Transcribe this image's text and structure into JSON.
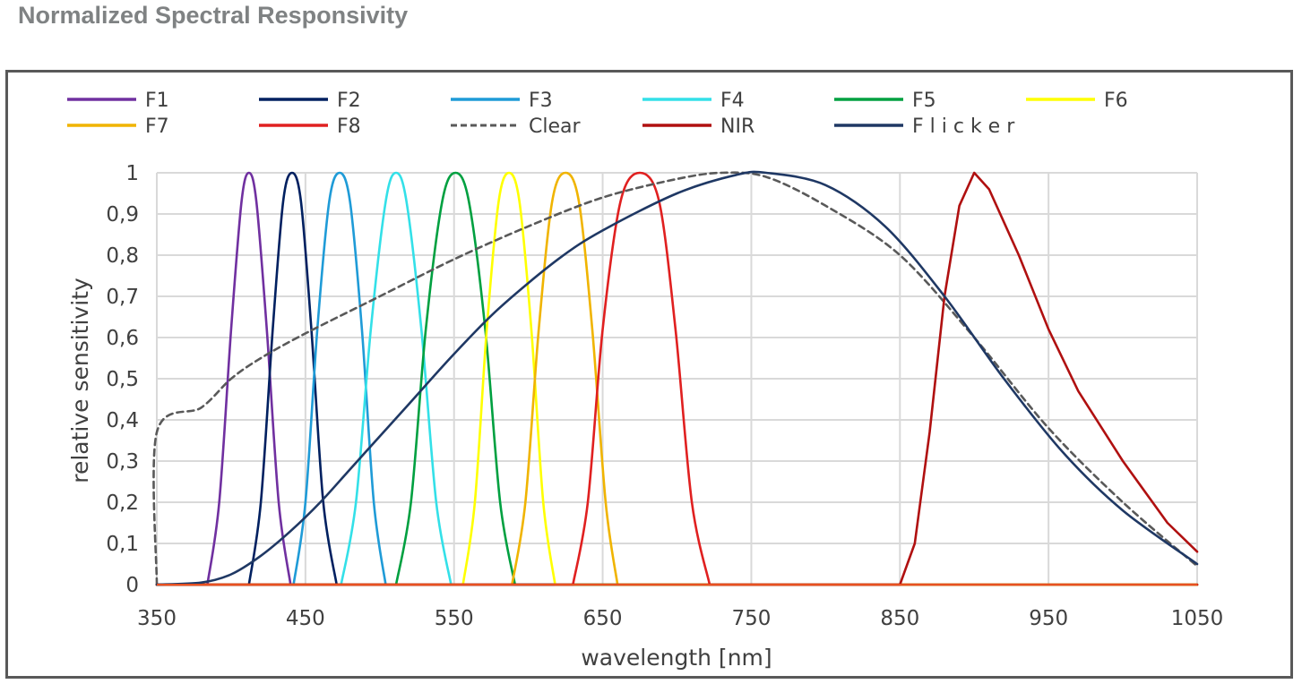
{
  "page": {
    "title": "Normalized Spectral Responsivity"
  },
  "chart_data": {
    "type": "line",
    "xlabel": "wavelength [nm]",
    "ylabel": "relative sensitivity",
    "xlim": [
      350,
      1050
    ],
    "ylim": [
      0,
      1
    ],
    "x_ticks": [
      "350",
      "450",
      "550",
      "650",
      "750",
      "850",
      "950",
      "1050"
    ],
    "x_tick_values": [
      350,
      450,
      550,
      650,
      750,
      850,
      950,
      1050
    ],
    "y_ticks": [
      "0",
      "0,1",
      "0,2",
      "0,3",
      "0,4",
      "0,5",
      "0,6",
      "0,7",
      "0,8",
      "0,9",
      "1"
    ],
    "y_tick_values": [
      0,
      0.1,
      0.2,
      0.3,
      0.4,
      0.5,
      0.6,
      0.7,
      0.8,
      0.9,
      1
    ],
    "grid": true,
    "legend_position": "top",
    "series": [
      {
        "name": "F1",
        "color": "#7030a0",
        "style": "solid",
        "x": [
          350,
          384,
          392,
          400,
          407,
          412,
          417,
          424,
          432,
          440,
          1050
        ],
        "y": [
          0,
          0,
          0.2,
          0.62,
          0.93,
          1,
          0.93,
          0.62,
          0.2,
          0,
          0
        ]
      },
      {
        "name": "F2",
        "color": "#002060",
        "style": "solid",
        "x": [
          350,
          412,
          420,
          428,
          435,
          441,
          447,
          454,
          462,
          471,
          1050
        ],
        "y": [
          0,
          0,
          0.2,
          0.62,
          0.93,
          1,
          0.93,
          0.62,
          0.2,
          0,
          0
        ]
      },
      {
        "name": "F3",
        "color": "#1f9bd7",
        "style": "solid",
        "x": [
          350,
          442,
          450,
          458,
          466,
          473,
          480,
          488,
          496,
          504,
          1050
        ],
        "y": [
          0,
          0,
          0.2,
          0.62,
          0.93,
          1,
          0.93,
          0.62,
          0.2,
          0,
          0
        ]
      },
      {
        "name": "F4",
        "color": "#33e0e8",
        "style": "solid",
        "x": [
          350,
          474,
          484,
          494,
          504,
          511,
          518,
          528,
          538,
          548,
          1050
        ],
        "y": [
          0,
          0,
          0.2,
          0.62,
          0.93,
          1,
          0.93,
          0.62,
          0.2,
          0,
          0
        ]
      },
      {
        "name": "F5",
        "color": "#00a040",
        "style": "solid",
        "x": [
          350,
          511,
          521,
          531,
          542,
          551,
          560,
          571,
          581,
          591,
          1050
        ],
        "y": [
          0,
          0,
          0.2,
          0.62,
          0.93,
          1,
          0.93,
          0.62,
          0.2,
          0,
          0
        ]
      },
      {
        "name": "F6",
        "color": "#ffff00",
        "style": "solid",
        "x": [
          350,
          556,
          564,
          572,
          580,
          587,
          594,
          602,
          610,
          618,
          1050
        ],
        "y": [
          0,
          0,
          0.2,
          0.62,
          0.93,
          1,
          0.93,
          0.62,
          0.2,
          0,
          0
        ]
      },
      {
        "name": "F7",
        "color": "#f0b400",
        "style": "solid",
        "x": [
          350,
          589,
          598,
          607,
          616,
          625,
          634,
          643,
          652,
          660,
          1050
        ],
        "y": [
          0,
          0,
          0.2,
          0.62,
          0.93,
          1,
          0.93,
          0.62,
          0.2,
          0,
          0
        ]
      },
      {
        "name": "F8",
        "color": "#e02020",
        "style": "solid",
        "x": [
          350,
          630,
          640,
          650,
          662,
          675,
          688,
          699,
          710,
          722,
          1050
        ],
        "y": [
          0,
          0,
          0.2,
          0.62,
          0.93,
          1,
          0.93,
          0.62,
          0.2,
          0,
          0
        ]
      },
      {
        "name": "Clear",
        "color": "#595959",
        "style": "dashed",
        "x": [
          350,
          350,
          380,
          400,
          420,
          450,
          500,
          550,
          600,
          650,
          700,
          730,
          760,
          800,
          850,
          900,
          950,
          1000,
          1050
        ],
        "y": [
          0,
          0.37,
          0.43,
          0.5,
          0.55,
          0.61,
          0.7,
          0.79,
          0.87,
          0.94,
          0.985,
          1,
          0.99,
          0.92,
          0.8,
          0.6,
          0.38,
          0.2,
          0.045
        ],
        "smooth": true
      },
      {
        "name": "NIR",
        "color": "#b01010",
        "style": "solid",
        "x": [
          350,
          850,
          860,
          870,
          880,
          890,
          900,
          910,
          930,
          950,
          970,
          1000,
          1030,
          1050
        ],
        "y": [
          0,
          0,
          0.1,
          0.37,
          0.7,
          0.92,
          1,
          0.96,
          0.8,
          0.62,
          0.47,
          0.3,
          0.15,
          0.08
        ],
        "smooth": false
      },
      {
        "name": "F l i c k e r",
        "color": "#1f3864",
        "style": "solid",
        "x": [
          350,
          380,
          400,
          420,
          440,
          460,
          480,
          500,
          520,
          550,
          580,
          620,
          650,
          700,
          740,
          760,
          800,
          840,
          880,
          920,
          960,
          1000,
          1050
        ],
        "y": [
          0,
          0.005,
          0.025,
          0.07,
          0.13,
          0.2,
          0.28,
          0.36,
          0.44,
          0.56,
          0.67,
          0.79,
          0.86,
          0.95,
          0.995,
          1,
          0.97,
          0.87,
          0.7,
          0.5,
          0.32,
          0.18,
          0.05
        ],
        "smooth": true
      }
    ],
    "baseline": {
      "color": "#e85020"
    }
  }
}
